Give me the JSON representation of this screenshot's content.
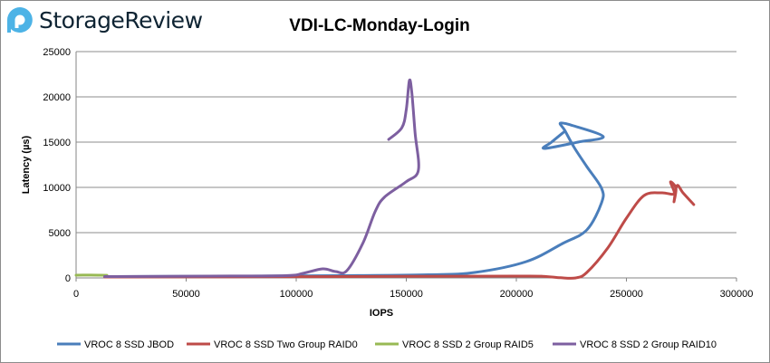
{
  "brand": "StorageReview",
  "chart_data": {
    "type": "line",
    "title": "VDI-LC-Monday-Login",
    "xlabel": "IOPS",
    "ylabel": "Latency (µs)",
    "xlim": [
      0,
      300000
    ],
    "ylim": [
      0,
      25000
    ],
    "xticks": [
      "0",
      "50000",
      "100000",
      "150000",
      "200000",
      "250000",
      "300000"
    ],
    "yticks": [
      "0",
      "5000",
      "10000",
      "15000",
      "20000",
      "25000"
    ],
    "grid": true,
    "legend_position": "bottom",
    "series": [
      {
        "name": "VROC 8 SSD JBOD",
        "color": "#4a7ebb",
        "points": [
          [
            13000,
            150
          ],
          [
            60000,
            180
          ],
          [
            120000,
            250
          ],
          [
            160000,
            350
          ],
          [
            181000,
            600
          ],
          [
            204500,
            1800
          ],
          [
            221000,
            3800
          ],
          [
            232000,
            5300
          ],
          [
            238700,
            8300
          ],
          [
            238700,
            9900
          ],
          [
            232000,
            12300
          ],
          [
            226300,
            14400
          ],
          [
            222000,
            16300
          ],
          [
            220000,
            17100
          ],
          [
            226000,
            16800
          ],
          [
            239500,
            15600
          ],
          [
            228000,
            15000
          ],
          [
            212700,
            14300
          ],
          [
            216000,
            15000
          ],
          [
            222000,
            16200
          ]
        ]
      },
      {
        "name": "VROC 8 SSD Two Group RAID0",
        "color": "#be4b48",
        "points": [
          [
            13000,
            100
          ],
          [
            80000,
            120
          ],
          [
            150000,
            170
          ],
          [
            200000,
            200
          ],
          [
            212000,
            180
          ],
          [
            220000,
            20
          ],
          [
            227000,
            0
          ],
          [
            232000,
            600
          ],
          [
            241500,
            3300
          ],
          [
            250000,
            6600
          ],
          [
            258000,
            9100
          ],
          [
            266000,
            9400
          ],
          [
            271600,
            9300
          ],
          [
            270000,
            10600
          ],
          [
            272500,
            9900
          ],
          [
            271600,
            8400
          ],
          [
            273000,
            10200
          ],
          [
            275700,
            9400
          ],
          [
            280600,
            8100
          ]
        ]
      },
      {
        "name": "VROC 8 SSD 2 Group RAID5",
        "color": "#98b954",
        "points": [
          [
            0,
            300
          ],
          [
            5000,
            310
          ],
          [
            10000,
            300
          ],
          [
            14000,
            290
          ]
        ]
      },
      {
        "name": "VROC 8 SSD 2 Group RAID10",
        "color": "#7d5fa0",
        "points": [
          [
            13000,
            150
          ],
          [
            60000,
            200
          ],
          [
            95000,
            250
          ],
          [
            103000,
            500
          ],
          [
            112000,
            1000
          ],
          [
            118000,
            700
          ],
          [
            123000,
            800
          ],
          [
            130400,
            3900
          ],
          [
            135800,
            7300
          ],
          [
            140000,
            8900
          ],
          [
            149800,
            10600
          ],
          [
            155500,
            11900
          ],
          [
            154000,
            16000
          ],
          [
            152500,
            20500
          ],
          [
            151400,
            21800
          ],
          [
            150000,
            18600
          ],
          [
            148000,
            16600
          ],
          [
            142000,
            15300
          ]
        ]
      }
    ]
  }
}
